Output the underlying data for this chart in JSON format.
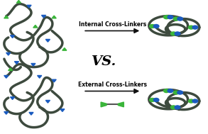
{
  "bg_color": "#ffffff",
  "chain_color": "#3d4a3e",
  "chain_lw": 2.5,
  "green": "#3ab53a",
  "blue": "#1a5bbf",
  "arrow_color": "#111111",
  "vs_text": "VS.",
  "vs_fontsize": 14,
  "vs_fontweight": "bold",
  "label_top": "Internal Cross-Linkers",
  "label_bottom": "External Cross-Linkers",
  "label_fontsize": 5.5,
  "label_fontweight": "bold",
  "fig_width": 2.93,
  "fig_height": 1.89,
  "dpi": 100
}
